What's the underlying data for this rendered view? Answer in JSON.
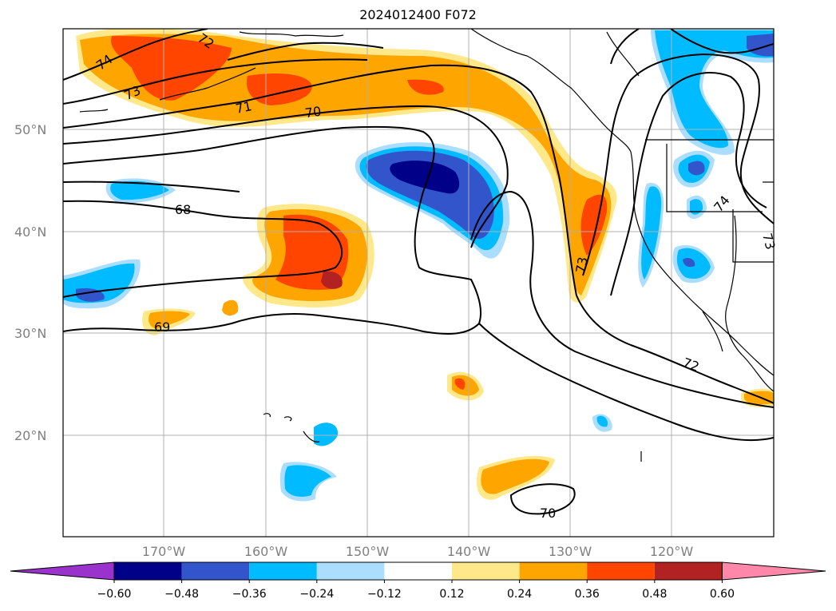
{
  "title": "2024012400 F072",
  "map": {
    "region": "North Pacific / western North America",
    "latitude_labels": [
      "50°N",
      "40°N",
      "30°N",
      "20°N"
    ],
    "longitude_labels": [
      "170°W",
      "160°W",
      "150°W",
      "140°W",
      "130°W",
      "120°W"
    ],
    "contour_labels": [
      "74",
      "73",
      "72",
      "71",
      "70",
      "69",
      "68",
      "73",
      "74",
      "73",
      "72",
      "70"
    ],
    "contour_color": "#000000",
    "gridlines": true
  },
  "colorbar": {
    "tick_labels": [
      "−0.60",
      "−0.48",
      "−0.36",
      "−0.24",
      "−0.12",
      "0.12",
      "0.24",
      "0.36",
      "0.48",
      "0.60"
    ],
    "colors": [
      "#9933cc",
      "#000088",
      "#3355cc",
      "#00bbff",
      "#aaddff",
      "#ffffff",
      "#ffe88a",
      "#ffa500",
      "#ff4500",
      "#b22222",
      "#ff88aa"
    ],
    "extend": "both"
  }
}
